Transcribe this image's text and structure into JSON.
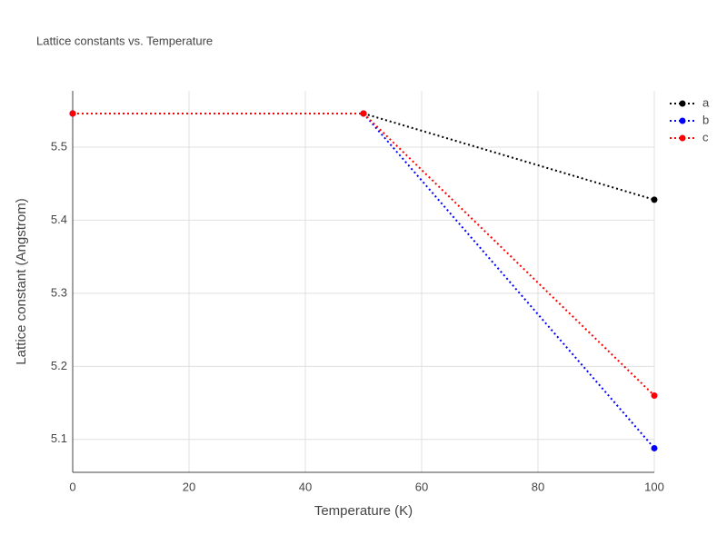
{
  "chart_data": {
    "type": "line",
    "title": "Lattice constants vs. Temperature",
    "x_label": "Temperature (K)",
    "y_label": "Lattice constant (Angstrom)",
    "x": [
      0,
      50,
      100
    ],
    "series": [
      {
        "name": "a",
        "color": "#000000",
        "values": [
          5.546,
          5.546,
          5.428
        ]
      },
      {
        "name": "b",
        "color": "#0000ff",
        "values": [
          5.546,
          5.546,
          5.088
        ]
      },
      {
        "name": "c",
        "color": "#ff0000",
        "values": [
          5.546,
          5.546,
          5.16
        ]
      }
    ],
    "xlim": [
      0,
      100
    ],
    "xticks": [
      0,
      20,
      40,
      60,
      80,
      100
    ],
    "ylim": [
      5.055,
      5.577
    ],
    "yticks": [
      5.1,
      5.2,
      5.3,
      5.4,
      5.5
    ],
    "grid": true,
    "legend": "right"
  }
}
